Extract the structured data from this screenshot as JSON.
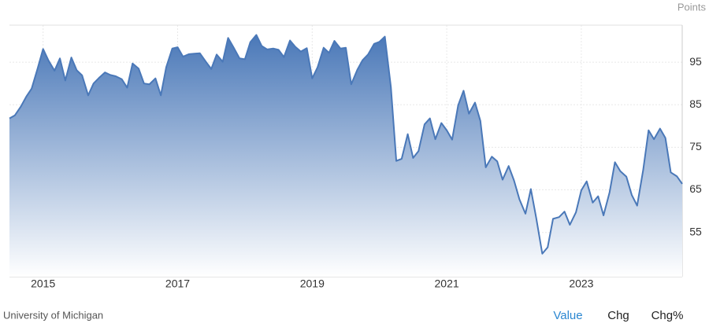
{
  "chart_data": {
    "type": "area",
    "y_axis_title": "Points",
    "color": "#4a78b8",
    "x": [
      2014.5,
      2014.58,
      2014.67,
      2014.75,
      2014.83,
      2014.92,
      2015.0,
      2015.08,
      2015.17,
      2015.25,
      2015.33,
      2015.42,
      2015.5,
      2015.58,
      2015.67,
      2015.75,
      2015.83,
      2015.92,
      2016.0,
      2016.08,
      2016.17,
      2016.25,
      2016.33,
      2016.42,
      2016.5,
      2016.58,
      2016.67,
      2016.75,
      2016.83,
      2016.92,
      2017.0,
      2017.08,
      2017.17,
      2017.25,
      2017.33,
      2017.42,
      2017.5,
      2017.58,
      2017.67,
      2017.75,
      2017.83,
      2017.92,
      2018.0,
      2018.08,
      2018.17,
      2018.25,
      2018.33,
      2018.42,
      2018.5,
      2018.58,
      2018.67,
      2018.75,
      2018.83,
      2018.92,
      2019.0,
      2019.08,
      2019.17,
      2019.25,
      2019.33,
      2019.42,
      2019.5,
      2019.58,
      2019.67,
      2019.75,
      2019.83,
      2019.92,
      2020.0,
      2020.08,
      2020.17,
      2020.25,
      2020.33,
      2020.42,
      2020.5,
      2020.58,
      2020.67,
      2020.75,
      2020.83,
      2020.92,
      2021.0,
      2021.08,
      2021.17,
      2021.25,
      2021.33,
      2021.42,
      2021.5,
      2021.58,
      2021.67,
      2021.75,
      2021.83,
      2021.92,
      2022.0,
      2022.08,
      2022.17,
      2022.25,
      2022.33,
      2022.42,
      2022.5,
      2022.58,
      2022.67,
      2022.75,
      2022.83,
      2022.92,
      2023.0,
      2023.08,
      2023.17,
      2023.25,
      2023.33,
      2023.42,
      2023.5,
      2023.58,
      2023.67,
      2023.75,
      2023.83,
      2023.92,
      2024.0,
      2024.08,
      2024.17,
      2024.25,
      2024.33,
      2024.42,
      2024.5
    ],
    "values": [
      81.8,
      82.5,
      84.6,
      86.9,
      88.8,
      93.6,
      98.1,
      95.4,
      93.0,
      95.9,
      90.7,
      96.1,
      93.1,
      91.9,
      87.2,
      90.0,
      91.3,
      92.6,
      92.0,
      91.7,
      91.0,
      89.0,
      94.7,
      93.5,
      90.0,
      89.8,
      91.2,
      87.2,
      93.8,
      98.2,
      98.5,
      96.3,
      96.9,
      97.0,
      97.1,
      95.1,
      93.4,
      96.8,
      95.1,
      100.7,
      98.5,
      95.9,
      95.7,
      99.7,
      101.4,
      98.8,
      98.0,
      98.2,
      97.9,
      96.2,
      100.1,
      98.6,
      97.5,
      98.3,
      91.2,
      93.8,
      98.4,
      97.2,
      100.0,
      98.2,
      98.4,
      89.8,
      93.2,
      95.5,
      96.8,
      99.3,
      99.8,
      101.0,
      89.1,
      71.8,
      72.3,
      78.1,
      72.5,
      74.1,
      80.4,
      81.8,
      76.9,
      80.7,
      79.0,
      76.8,
      84.9,
      88.3,
      82.9,
      85.5,
      81.2,
      70.3,
      72.8,
      71.7,
      67.4,
      70.6,
      67.2,
      62.8,
      59.4,
      65.2,
      58.4,
      50.0,
      51.5,
      58.2,
      58.6,
      59.9,
      56.8,
      59.7,
      64.9,
      67.0,
      62.0,
      63.5,
      59.0,
      64.4,
      71.5,
      69.4,
      68.1,
      63.8,
      61.3,
      69.7,
      79.0,
      76.9,
      79.4,
      77.2,
      69.1,
      68.2,
      66.4
    ],
    "xlim": [
      2014.5,
      2024.5
    ],
    "xticks": [
      2015,
      2017,
      2019,
      2021,
      2023
    ],
    "ylim": [
      44.6,
      103.7
    ],
    "yticks": [
      55,
      65,
      75,
      85,
      95
    ],
    "grid": true
  },
  "footer": {
    "source": "University of Michigan",
    "tabs": [
      "Value",
      "Chg",
      "Chg%"
    ],
    "active_tab": 0
  }
}
